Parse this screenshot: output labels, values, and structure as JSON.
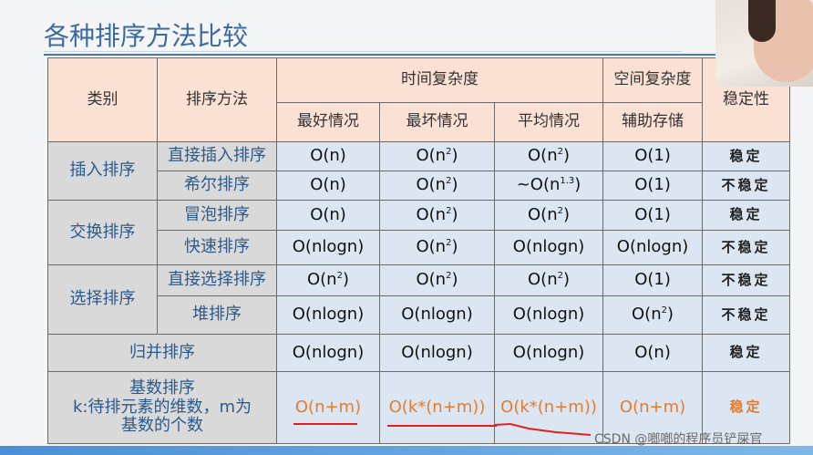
{
  "title": "各种排序方法比较",
  "header": {
    "category": "类别",
    "method": "排序方法",
    "time": "时间复杂度",
    "space": "空间复杂度",
    "stability": "稳定性",
    "best": "最好情况",
    "worst": "最坏情况",
    "average": "平均情况",
    "aux": "辅助存储"
  },
  "rows": [
    {
      "category": "插入排序",
      "method": "直接插入排序",
      "best": "O(n)",
      "worst": "O(n²)",
      "avg": "O(n²)",
      "space": "O(1)",
      "stable": "稳定"
    },
    {
      "method": "希尔排序",
      "best": "O(n)",
      "worst": "O(n²)",
      "avg": "~O(n^1.3)",
      "space": "O(1)",
      "stable": "不稳定"
    },
    {
      "category": "交换排序",
      "method": "冒泡排序",
      "best": "O(n)",
      "worst": "O(n²)",
      "avg": "O(n²)",
      "space": "O(1)",
      "stable": "稳定"
    },
    {
      "method": "快速排序",
      "best": "O(nlogn)",
      "worst": "O(n²)",
      "avg": "O(nlogn)",
      "space": "O(nlogn)",
      "stable": "不稳定"
    },
    {
      "category": "选择排序",
      "method": "直接选择排序",
      "best": "O(n²)",
      "worst": "O(n²)",
      "avg": "O(n²)",
      "space": "O(1)",
      "stable": "不稳定"
    },
    {
      "method": "堆排序",
      "best": "O(nlogn)",
      "worst": "O(nlogn)",
      "avg": "O(nlogn)",
      "space": "O(n²)",
      "stable": "不稳定"
    },
    {
      "method": "归并排序",
      "best": "O(nlogn)",
      "worst": "O(nlogn)",
      "avg": "O(nlogn)",
      "space": "O(n)",
      "stable": "稳定"
    },
    {
      "method_line1": "基数排序",
      "method_line2": "k:待排元素的维数，m为",
      "method_line3": "基数的个数",
      "best": "O(n+m)",
      "worst": "O(k*(n+m))",
      "avg": "O(k*(n+m))",
      "space": "O(n+m)",
      "stable": "稳定"
    }
  ],
  "watermark": "CSDN @啷啷的程序员铲屎官",
  "colors": {
    "header": "#fbe1d3",
    "category": "#d9d9d9",
    "cell": "#dce6f2",
    "text_blue": "#2c5a8c",
    "highlight": "#e57b2c",
    "annotation": "#e02020"
  }
}
